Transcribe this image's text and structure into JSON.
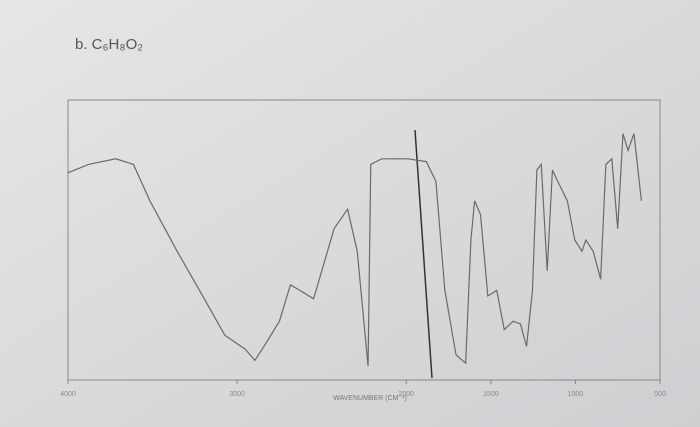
{
  "chart_data": {
    "type": "line",
    "title": "b.  C₆H₈O₂",
    "x_label": "WAVENUMBER (CM⁻¹)",
    "x": [
      4000,
      3879,
      3718,
      3613,
      3516,
      3355,
      3194,
      3073,
      2952,
      2895,
      2831,
      2750,
      2685,
      2629,
      2548,
      2427,
      2347,
      2290,
      2226,
      2210,
      2145,
      1991,
      1882,
      1825,
      1772,
      1706,
      1649,
      1618,
      1596,
      1561,
      1518,
      1465,
      1421,
      1368,
      1325,
      1289,
      1254,
      1228,
      1202,
      1167,
      1136,
      1105,
      1048,
      1004,
      961,
      939,
      895,
      851,
      820,
      785,
      750,
      719,
      689,
      654,
      610
    ],
    "series": [
      {
        "color": "#6a6a6a",
        "values": [
          74,
          77,
          79,
          77,
          64,
          46,
          29,
          16,
          11,
          7,
          13,
          21,
          34,
          32,
          29,
          54,
          61,
          46,
          5,
          77,
          79,
          79,
          78,
          71,
          32,
          9,
          6,
          50,
          64,
          59,
          30,
          32,
          18,
          21,
          20,
          12,
          32,
          75,
          77,
          39,
          75,
          71,
          64,
          50,
          46,
          50,
          46,
          36,
          77,
          79,
          54,
          88,
          82,
          88,
          64
        ]
      }
    ],
    "xlim": [
      4000,
      500
    ],
    "xticks": [
      4000,
      3000,
      2000,
      1500,
      1000,
      500
    ],
    "ylim": [
      0,
      100
    ]
  }
}
